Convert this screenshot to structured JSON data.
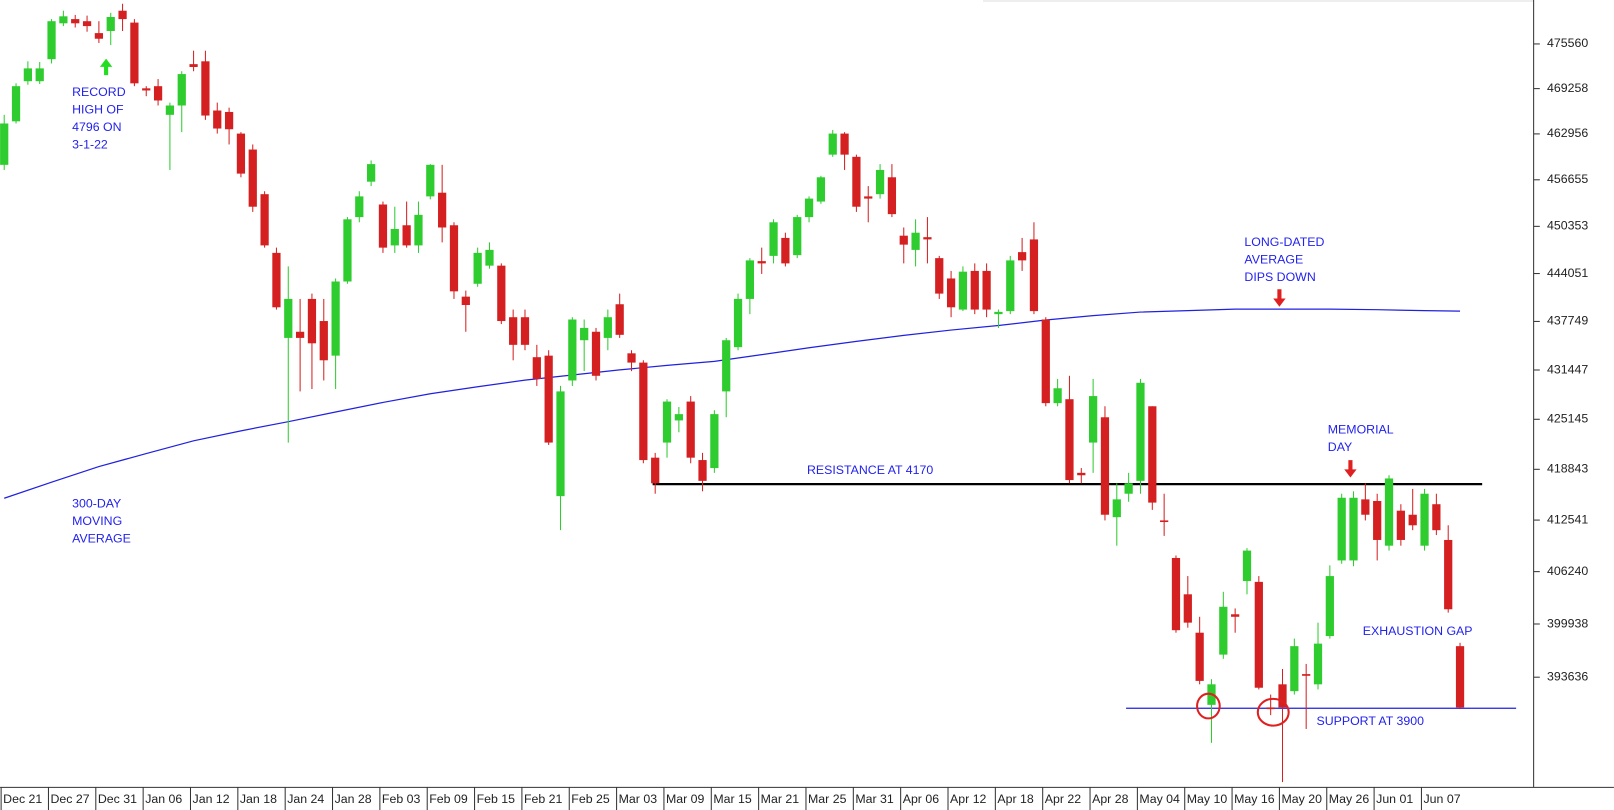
{
  "chart_data": {
    "type": "candlestick",
    "log_scale": true,
    "ylim": [
      380900,
      481100
    ],
    "yticks": [
      475560,
      469258,
      462956,
      456655,
      450353,
      444051,
      437749,
      431447,
      425145,
      418843,
      412541,
      406240,
      399938,
      393636
    ],
    "up_color": "#2ecc2e",
    "down_color": "#d42020",
    "categories": [
      "Dec 21",
      null,
      null,
      null,
      "Dec 27",
      null,
      null,
      null,
      "Dec 31",
      null,
      null,
      null,
      "Jan 06",
      null,
      null,
      null,
      "Jan 12",
      null,
      null,
      null,
      "Jan 18",
      null,
      null,
      null,
      "Jan 24",
      null,
      null,
      null,
      "Jan 28",
      null,
      null,
      null,
      "Feb 03",
      null,
      null,
      null,
      "Feb 09",
      null,
      null,
      null,
      "Feb 15",
      null,
      null,
      null,
      "Feb 21",
      null,
      null,
      null,
      "Feb 25",
      null,
      null,
      null,
      "Mar 03",
      null,
      null,
      null,
      "Mar 09",
      null,
      null,
      null,
      "Mar 15",
      null,
      null,
      null,
      "Mar 21",
      null,
      null,
      null,
      "Mar 25",
      null,
      null,
      null,
      "Mar 31",
      null,
      null,
      null,
      "Apr 06",
      null,
      null,
      null,
      "Apr 12",
      null,
      null,
      null,
      "Apr 18",
      null,
      null,
      null,
      "Apr 22",
      null,
      null,
      null,
      "Apr 28",
      null,
      null,
      null,
      "May 04",
      null,
      null,
      null,
      "May 10",
      null,
      null,
      null,
      "May 16",
      null,
      null,
      null,
      "May 20",
      null,
      null,
      null,
      "May 26",
      null,
      null,
      null,
      "Jun 01",
      null,
      null,
      null,
      "Jun 07",
      null,
      null,
      null
    ],
    "open": [
      458700,
      464700,
      470300,
      470300,
      473400,
      478500,
      479100,
      478800,
      477100,
      477400,
      480300,
      478600,
      469300,
      469600,
      465600,
      466900,
      472700,
      473100,
      466200,
      466000,
      463000,
      460800,
      454700,
      446800,
      435600,
      436400,
      440700,
      437800,
      433300,
      443000,
      451600,
      456400,
      453300,
      447800,
      450500,
      447800,
      454400,
      454900,
      450500,
      441000,
      442700,
      445100,
      445100,
      438300,
      438300,
      433100,
      433300,
      415500,
      430100,
      435300,
      436400,
      435600,
      440000,
      433600,
      432400,
      420300,
      422200,
      425000,
      427400,
      420000,
      419000,
      428700,
      434400,
      440700,
      445700,
      446400,
      448800,
      446500,
      451600,
      453700,
      460100,
      463000,
      459800,
      454400,
      454700,
      457000,
      449100,
      447200,
      448900,
      446100,
      443400,
      439300,
      444400,
      444400,
      438700,
      439100,
      446900,
      448600,
      438000,
      427200,
      427700,
      418400,
      422200,
      425400,
      412900,
      415800,
      417400,
      426800,
      412500,
      407900,
      403500,
      398900,
      390400,
      396300,
      401100,
      405100,
      405000,
      390100,
      392800,
      392000,
      394000,
      392800,
      398500,
      407600,
      407600,
      415100,
      414900,
      409400,
      413700,
      413200,
      409400,
      414500,
      410100,
      397300
    ],
    "high": [
      465600,
      470000,
      473100,
      473000,
      479100,
      480300,
      479700,
      479600,
      478800,
      480000,
      481300,
      479100,
      469600,
      470600,
      467300,
      471700,
      474600,
      474600,
      467300,
      466600,
      463200,
      461500,
      455100,
      447500,
      445000,
      440700,
      441400,
      440700,
      443400,
      451600,
      455100,
      459300,
      453700,
      453000,
      453700,
      453700,
      458800,
      458700,
      450900,
      441800,
      447500,
      448200,
      445400,
      439300,
      439300,
      434700,
      434000,
      429400,
      438300,
      438000,
      436900,
      439300,
      441400,
      434000,
      432700,
      420900,
      427700,
      426700,
      428100,
      420900,
      426300,
      435600,
      441400,
      446100,
      447500,
      451300,
      449500,
      451900,
      454400,
      457200,
      463500,
      463200,
      460100,
      455800,
      458800,
      458800,
      450200,
      451300,
      451600,
      446400,
      444400,
      445000,
      445400,
      445400,
      439300,
      446400,
      448800,
      450900,
      438300,
      430300,
      430700,
      419000,
      430300,
      426800,
      417100,
      418400,
      430300,
      426800,
      415800,
      408200,
      405700,
      400800,
      393400,
      403800,
      401800,
      409100,
      405700,
      391600,
      394600,
      398200,
      395200,
      400100,
      407000,
      415800,
      416100,
      417100,
      415800,
      418100,
      414500,
      416400,
      416400,
      415800,
      411900,
      397700
    ],
    "low": [
      458000,
      464400,
      469800,
      469900,
      472800,
      478100,
      477900,
      477300,
      475700,
      475400,
      477400,
      469600,
      468200,
      466900,
      458000,
      463200,
      471700,
      464900,
      463000,
      461500,
      457000,
      452300,
      447500,
      439300,
      422200,
      428700,
      429000,
      430100,
      429000,
      442700,
      450900,
      455800,
      446800,
      446800,
      447500,
      446800,
      454000,
      448200,
      440700,
      436400,
      442300,
      444700,
      437400,
      432700,
      434000,
      429400,
      421900,
      411300,
      429400,
      431300,
      430100,
      434000,
      435600,
      431300,
      419600,
      415800,
      420300,
      423500,
      419600,
      416100,
      418400,
      425400,
      434000,
      438700,
      444000,
      445400,
      445000,
      446100,
      450900,
      453400,
      459800,
      458000,
      452300,
      450900,
      454100,
      451600,
      445400,
      445000,
      445400,
      440700,
      438300,
      439100,
      438700,
      438300,
      436900,
      438700,
      444400,
      438700,
      426800,
      426800,
      417100,
      417100,
      418400,
      412500,
      409400,
      414800,
      415800,
      413800,
      410600,
      398900,
      399500,
      392800,
      386000,
      395800,
      398900,
      403500,
      392200,
      389200,
      381500,
      391600,
      387600,
      392200,
      398200,
      407200,
      406900,
      412500,
      407600,
      408800,
      409400,
      411300,
      408800,
      410700,
      401300,
      389900
    ],
    "close": [
      464400,
      469600,
      472100,
      472100,
      478800,
      479500,
      478500,
      478100,
      476300,
      479400,
      479100,
      470000,
      469000,
      467600,
      466900,
      471300,
      472300,
      465500,
      463700,
      463600,
      457500,
      453000,
      447800,
      439600,
      440700,
      435600,
      434900,
      432700,
      443000,
      451300,
      454400,
      458800,
      447500,
      450000,
      447800,
      451900,
      458700,
      450200,
      441700,
      439900,
      446800,
      447200,
      437800,
      434700,
      434700,
      430300,
      422200,
      428700,
      438000,
      436900,
      430700,
      438300,
      436000,
      432400,
      420000,
      417100,
      427400,
      425800,
      420300,
      417400,
      425800,
      435300,
      440700,
      445800,
      445400,
      450900,
      445400,
      451600,
      454100,
      457000,
      463000,
      460100,
      453000,
      454100,
      458000,
      452000,
      447900,
      449500,
      448600,
      441400,
      439600,
      444300,
      439300,
      439300,
      439000,
      445800,
      445800,
      439100,
      427200,
      429100,
      417500,
      418100,
      428100,
      413200,
      415100,
      417100,
      429800,
      414700,
      412300,
      399200,
      400100,
      393200,
      392800,
      402000,
      400800,
      408800,
      392400,
      389900,
      390100,
      397300,
      393800,
      397600,
      405700,
      415300,
      415300,
      413200,
      410100,
      417700,
      410100,
      411900,
      415800,
      411300,
      401700,
      390100
    ],
    "moving_average": {
      "color": "#2020e0",
      "x": [
        0,
        4,
        8,
        12,
        16,
        20,
        24,
        28,
        32,
        36,
        40,
        44,
        48,
        52,
        56,
        60,
        64,
        68,
        72,
        76,
        80,
        84,
        88,
        92,
        96,
        100,
        104,
        108,
        112,
        116,
        120,
        123
      ],
      "values": [
        415240,
        417230,
        419190,
        420810,
        422420,
        423680,
        424840,
        426070,
        427290,
        428390,
        429290,
        430150,
        430800,
        431460,
        432040,
        432560,
        433420,
        434320,
        435150,
        435920,
        436620,
        437210,
        437940,
        438500,
        438980,
        439170,
        439360,
        439360,
        439360,
        439280,
        439170,
        439090
      ]
    },
    "reference_lines": [
      {
        "value": 417000,
        "label": "RESISTANCE AT 4170",
        "color": "#000000"
      },
      {
        "value": 390000,
        "label": "SUPPORT AT 3900",
        "color": "#2020e0"
      }
    ],
    "annotation_color": "#2222ee",
    "annotations": [
      {
        "lines": [
          "RECORD",
          "HIGH OF",
          "4796 ON",
          "3-1-22"
        ]
      },
      {
        "lines": [
          "300-DAY",
          "MOVING",
          "AVERAGE"
        ]
      },
      {
        "lines": [
          "LONG-DATED",
          "AVERAGE",
          "DIPS DOWN"
        ]
      },
      {
        "lines": [
          "MEMORIAL",
          "DAY"
        ]
      },
      {
        "lines": [
          "EXHAUSTION GAP"
        ]
      }
    ]
  }
}
